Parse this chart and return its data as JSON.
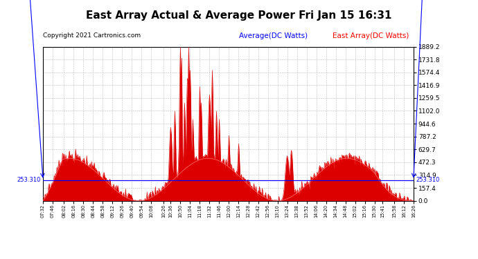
{
  "title": "East Array Actual & Average Power Fri Jan 15 16:31",
  "copyright": "Copyright 2021 Cartronics.com",
  "legend_average": "Average(DC Watts)",
  "legend_east": "East Array(DC Watts)",
  "ymax": 1889.2,
  "ymin": 0.0,
  "yticks": [
    0.0,
    157.4,
    314.9,
    472.3,
    629.7,
    787.2,
    944.6,
    1102.0,
    1259.5,
    1416.9,
    1574.4,
    1731.8,
    1889.2
  ],
  "hline_value": 253.31,
  "background_color": "#ffffff",
  "grid_color": "#bbbbbb",
  "color_actual": "#dd0000",
  "color_avg": "#cc0000",
  "title_fontsize": 11,
  "copyright_fontsize": 6.5,
  "legend_fontsize": 7.5
}
